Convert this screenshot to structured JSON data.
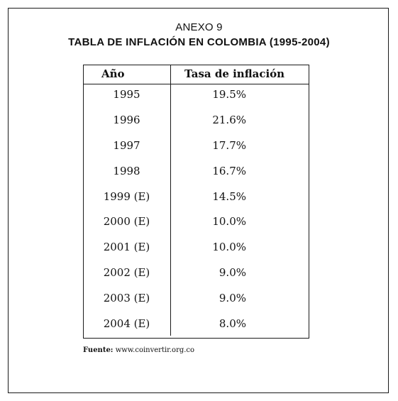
{
  "annex": "ANEXO 9",
  "title": "TABLA DE INFLACIÓN EN COLOMBIA (1995-2004)",
  "table": {
    "headers": {
      "year": "Año",
      "rate": "Tasa de inflación"
    },
    "rows": [
      {
        "year": "1995",
        "rate": "19.5%"
      },
      {
        "year": "1996",
        "rate": "21.6%"
      },
      {
        "year": "1997",
        "rate": "17.7%"
      },
      {
        "year": "1998",
        "rate": "16.7%"
      },
      {
        "year": "1999 (E)",
        "rate": "14.5%"
      },
      {
        "year": "2000 (E)",
        "rate": "10.0%"
      },
      {
        "year": "2001 (E)",
        "rate": "10.0%"
      },
      {
        "year": "2002 (E)",
        "rate": "9.0%"
      },
      {
        "year": "2003 (E)",
        "rate": "9.0%"
      },
      {
        "year": "2004 (E)",
        "rate": "8.0%"
      }
    ]
  },
  "source": {
    "label": "Fuente:",
    "value": "www.coinvertir.org.co"
  },
  "chart_data": {
    "type": "table",
    "title": "TABLA DE INFLACIÓN EN COLOMBIA (1995-2004)",
    "columns": [
      "Año",
      "Tasa de inflación"
    ],
    "rows": [
      [
        "1995",
        "19.5%"
      ],
      [
        "1996",
        "21.6%"
      ],
      [
        "1997",
        "17.7%"
      ],
      [
        "1998",
        "16.7%"
      ],
      [
        "1999 (E)",
        "14.5%"
      ],
      [
        "2000 (E)",
        "10.0%"
      ],
      [
        "2001 (E)",
        "10.0%"
      ],
      [
        "2002 (E)",
        "9.0%"
      ],
      [
        "2003 (E)",
        "9.0%"
      ],
      [
        "2004 (E)",
        "8.0%"
      ]
    ],
    "values": [
      19.5,
      21.6,
      17.7,
      16.7,
      14.5,
      10.0,
      10.0,
      9.0,
      9.0,
      8.0
    ]
  }
}
